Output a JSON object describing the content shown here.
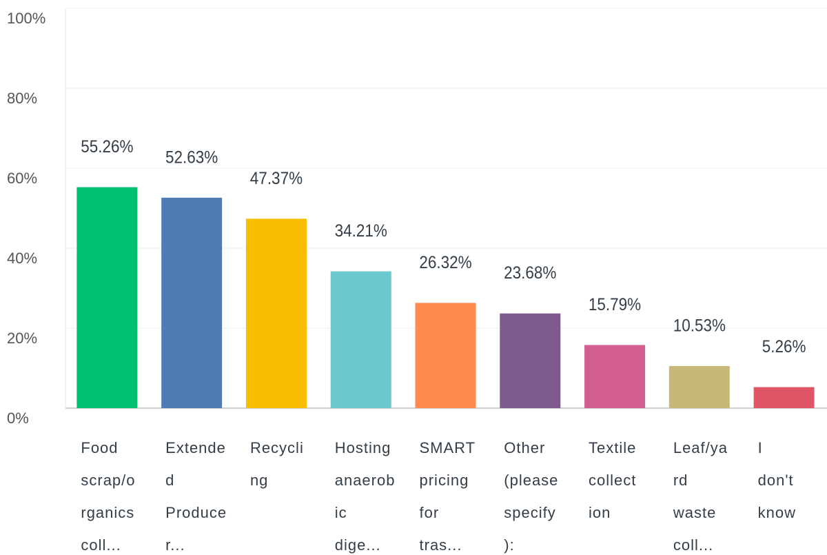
{
  "chart_data": {
    "type": "bar",
    "categories": [
      [
        "Food",
        "scrap/o",
        "rganics",
        "coll..."
      ],
      [
        "Extende",
        "d",
        "Produce",
        "r..."
      ],
      [
        "Recycli",
        "ng"
      ],
      [
        "Hosting",
        "anaerob",
        "ic",
        "dige..."
      ],
      [
        "SMART",
        "pricing",
        "for",
        "tras..."
      ],
      [
        "Other",
        "(please",
        "specify",
        "):"
      ],
      [
        "Textile",
        "collect",
        "ion"
      ],
      [
        "Leaf/ya",
        "rd",
        "waste",
        "coll..."
      ],
      [
        "I",
        "don't",
        "know"
      ]
    ],
    "values": [
      55.26,
      52.63,
      47.37,
      34.21,
      26.32,
      23.68,
      15.79,
      10.53,
      5.26
    ],
    "value_labels": [
      "55.26%",
      "52.63%",
      "47.37%",
      "34.21%",
      "26.32%",
      "23.68%",
      "15.79%",
      "10.53%",
      "5.26%"
    ],
    "colors": [
      "#00bf6f",
      "#507cb6",
      "#f9be00",
      "#6bc8cd",
      "#ff8b4f",
      "#7d5b8e",
      "#d25f90",
      "#c7b879",
      "#e05666"
    ],
    "ylim": [
      0,
      100
    ],
    "yticks": [
      {
        "value": 0,
        "label": "0%"
      },
      {
        "value": 20,
        "label": "20%"
      },
      {
        "value": 40,
        "label": "40%"
      },
      {
        "value": 60,
        "label": "60%"
      },
      {
        "value": 80,
        "label": "80%"
      },
      {
        "value": 100,
        "label": "100%"
      }
    ],
    "grid": true
  }
}
